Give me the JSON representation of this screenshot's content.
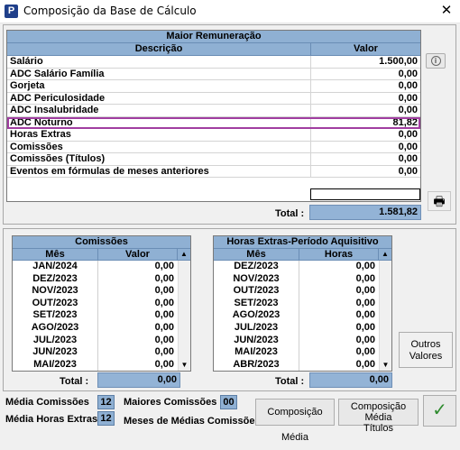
{
  "window": {
    "title": "Composição da Base de Cálculo",
    "icon_letter": "P"
  },
  "maior": {
    "title": "Maior Remuneração",
    "col_desc": "Descrição",
    "col_val": "Valor",
    "rows": [
      {
        "desc": "Salário",
        "val": "1.500,00"
      },
      {
        "desc": "ADC Salário Família",
        "val": "0,00"
      },
      {
        "desc": "Gorjeta",
        "val": "0,00"
      },
      {
        "desc": "ADC Periculosidade",
        "val": "0,00"
      },
      {
        "desc": "ADC Insalubridade",
        "val": "0,00"
      },
      {
        "desc": "ADC Noturno",
        "val": "81,82"
      },
      {
        "desc": "Horas Extras",
        "val": "0,00"
      },
      {
        "desc": "Comissões",
        "val": "0,00"
      },
      {
        "desc": "Comissões (Títulos)",
        "val": "0,00"
      },
      {
        "desc": "Eventos em fórmulas de meses anteriores",
        "val": "0,00"
      }
    ],
    "total_label": "Total :",
    "total_value": "1.581,82"
  },
  "comissoes": {
    "title": "Comissões",
    "col_mes": "Mês",
    "col_val": "Valor",
    "rows": [
      {
        "mes": "JAN/2024",
        "val": "0,00"
      },
      {
        "mes": "DEZ/2023",
        "val": "0,00"
      },
      {
        "mes": "NOV/2023",
        "val": "0,00"
      },
      {
        "mes": "OUT/2023",
        "val": "0,00"
      },
      {
        "mes": "SET/2023",
        "val": "0,00"
      },
      {
        "mes": "AGO/2023",
        "val": "0,00"
      },
      {
        "mes": "JUL/2023",
        "val": "0,00"
      },
      {
        "mes": "JUN/2023",
        "val": "0,00"
      },
      {
        "mes": "MAI/2023",
        "val": "0,00"
      }
    ],
    "total_label": "Total :",
    "total_value": "0,00"
  },
  "horas_extras": {
    "title": "Horas Extras-Período Aquisitivo",
    "col_mes": "Mês",
    "col_horas": "Horas",
    "rows": [
      {
        "mes": "DEZ/2023",
        "val": "0,00"
      },
      {
        "mes": "NOV/2023",
        "val": "0,00"
      },
      {
        "mes": "OUT/2023",
        "val": "0,00"
      },
      {
        "mes": "SET/2023",
        "val": "0,00"
      },
      {
        "mes": "AGO/2023",
        "val": "0,00"
      },
      {
        "mes": "JUL/2023",
        "val": "0,00"
      },
      {
        "mes": "JUN/2023",
        "val": "0,00"
      },
      {
        "mes": "MAI/2023",
        "val": "0,00"
      },
      {
        "mes": "ABR/2023",
        "val": "0,00"
      }
    ],
    "total_label": "Total :",
    "total_value": "0,00"
  },
  "buttons": {
    "outros_valores_l1": "Outros",
    "outros_valores_l2": "Valores",
    "composicao_media": "Composição Média",
    "composicao_media_titulos_l1": "Composição Média",
    "composicao_media_titulos_l2": "Títulos",
    "ok_glyph": "✓"
  },
  "footer": {
    "media_comissoes_label": "Média Comissões",
    "media_comissoes_value": "12",
    "maiores_comissoes_label": "Maiores Comissões",
    "maiores_comissoes_value": "00",
    "media_horas_extras_label": "Média Horas Extras",
    "media_horas_extras_value": "12",
    "meses_medias_label": "Meses de Médias Comissões"
  },
  "colors": {
    "header": "#8fb0d3",
    "highlight": "#a03ea0",
    "ok_green": "#2e8b2e"
  }
}
